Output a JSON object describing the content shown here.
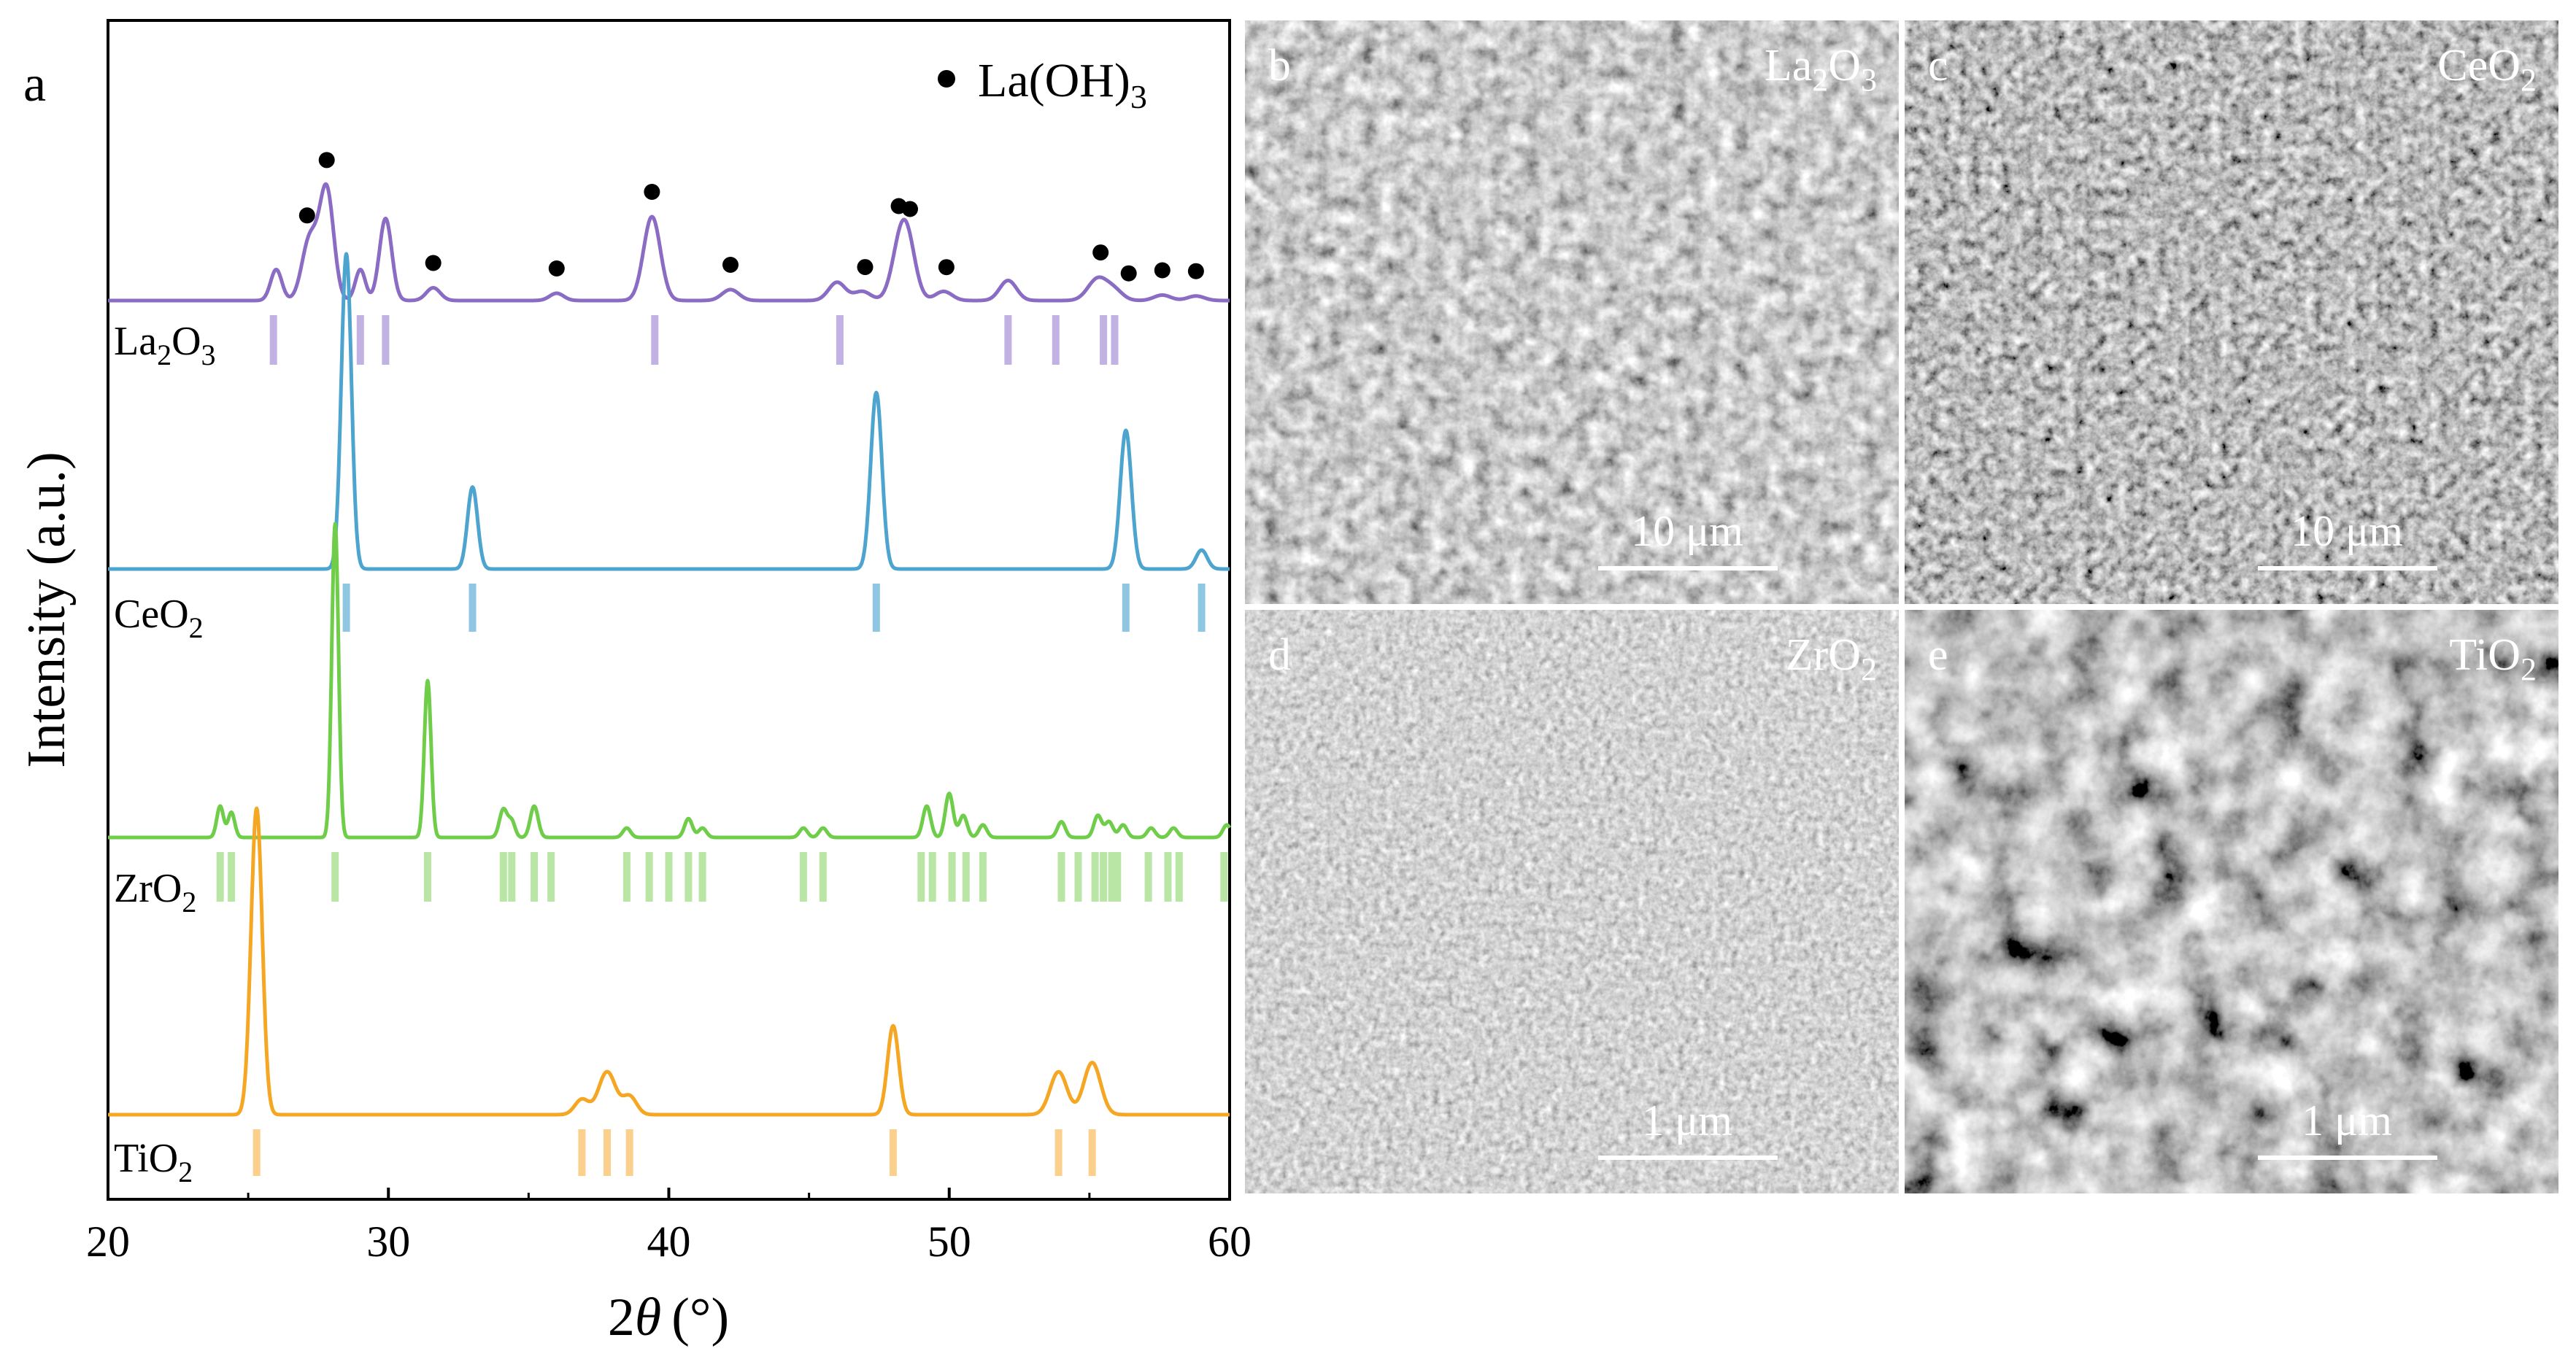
{
  "panel_label": "a",
  "chart_data": {
    "type": "line",
    "xlabel_prefix": "2",
    "xlabel_symbol": "θ",
    "xlabel_unit": "(°)",
    "ylabel": "Intensity (a.u.)",
    "xlim": [
      20,
      60
    ],
    "xticks": [
      20,
      30,
      40,
      50,
      60
    ],
    "legend": {
      "marker": "●",
      "label_main": "La(OH)",
      "label_sub": "3"
    },
    "series": [
      {
        "name": "La2O3",
        "label_main": "La",
        "label_sub1": "2",
        "label_mid": "O",
        "label_sub2": "3",
        "color": "#8a6cc4",
        "ref_color": "#c2b1e3",
        "amp": 1.0,
        "peaks": [
          [
            26.0,
            0.2,
            0.17
          ],
          [
            27.2,
            0.28,
            0.34
          ],
          [
            27.8,
            0.25,
            0.6
          ],
          [
            29.0,
            0.18,
            0.17
          ],
          [
            29.9,
            0.22,
            0.45
          ],
          [
            31.6,
            0.25,
            0.07
          ],
          [
            36.0,
            0.25,
            0.04
          ],
          [
            39.4,
            0.3,
            0.46
          ],
          [
            42.2,
            0.3,
            0.06
          ],
          [
            46.0,
            0.3,
            0.1
          ],
          [
            46.9,
            0.3,
            0.05
          ],
          [
            48.2,
            0.3,
            0.2
          ],
          [
            48.5,
            0.3,
            0.3
          ],
          [
            49.8,
            0.3,
            0.05
          ],
          [
            52.1,
            0.3,
            0.11
          ],
          [
            55.3,
            0.35,
            0.12
          ],
          [
            55.9,
            0.3,
            0.05
          ],
          [
            57.6,
            0.3,
            0.03
          ],
          [
            58.8,
            0.3,
            0.025
          ]
        ],
        "refs": [
          25.9,
          29.0,
          29.9,
          39.5,
          46.1,
          52.1,
          53.8,
          55.5,
          55.9
        ],
        "dots": [
          27.1,
          27.8,
          31.6,
          36.0,
          39.4,
          42.2,
          47.0,
          48.2,
          48.6,
          49.9,
          55.4,
          56.4,
          57.6,
          58.8
        ]
      },
      {
        "name": "CeO2",
        "label_main": "Ce",
        "label_sub1": "",
        "label_mid": "O",
        "label_sub2": "2",
        "color": "#4da4cf",
        "ref_color": "#8fc6e2",
        "amp": 1.0,
        "peaks": [
          [
            28.5,
            0.18,
            1.0
          ],
          [
            33.0,
            0.18,
            0.26
          ],
          [
            47.4,
            0.2,
            0.56
          ],
          [
            56.3,
            0.2,
            0.44
          ],
          [
            59.0,
            0.2,
            0.06
          ]
        ],
        "refs": [
          28.5,
          33.0,
          47.4,
          56.3,
          59.0
        ],
        "dots": []
      },
      {
        "name": "ZrO2",
        "label_main": "Zr",
        "label_sub1": "",
        "label_mid": "O",
        "label_sub2": "2",
        "color": "#6fcd4a",
        "ref_color": "#b9e6a5",
        "amp": 1.0,
        "peaks": [
          [
            24.0,
            0.12,
            0.1
          ],
          [
            24.4,
            0.12,
            0.08
          ],
          [
            28.1,
            0.12,
            1.0
          ],
          [
            31.4,
            0.12,
            0.5
          ],
          [
            34.1,
            0.14,
            0.09
          ],
          [
            34.4,
            0.12,
            0.05
          ],
          [
            35.2,
            0.14,
            0.1
          ],
          [
            38.5,
            0.14,
            0.03
          ],
          [
            40.7,
            0.14,
            0.06
          ],
          [
            41.2,
            0.14,
            0.03
          ],
          [
            44.8,
            0.14,
            0.03
          ],
          [
            45.5,
            0.14,
            0.03
          ],
          [
            49.2,
            0.14,
            0.1
          ],
          [
            50.0,
            0.14,
            0.14
          ],
          [
            50.5,
            0.14,
            0.07
          ],
          [
            51.2,
            0.14,
            0.04
          ],
          [
            54.0,
            0.14,
            0.05
          ],
          [
            55.3,
            0.14,
            0.07
          ],
          [
            55.7,
            0.14,
            0.05
          ],
          [
            56.2,
            0.14,
            0.04
          ],
          [
            57.2,
            0.14,
            0.03
          ],
          [
            58.0,
            0.14,
            0.03
          ],
          [
            59.9,
            0.14,
            0.04
          ]
        ],
        "refs": [
          24.0,
          24.4,
          28.1,
          31.4,
          34.1,
          34.4,
          35.2,
          35.8,
          38.5,
          39.3,
          40.0,
          40.7,
          41.2,
          44.8,
          45.5,
          49.0,
          49.4,
          50.1,
          50.6,
          51.2,
          54.0,
          54.6,
          55.2,
          55.5,
          55.8,
          56.0,
          57.1,
          57.8,
          58.2,
          59.8
        ],
        "dots": []
      },
      {
        "name": "TiO2",
        "label_main": "Ti",
        "label_sub1": "",
        "label_mid": "O",
        "label_sub2": "2",
        "color": "#f5a623",
        "ref_color": "#fbd08d",
        "amp": 1.0,
        "peaks": [
          [
            25.3,
            0.2,
            1.0
          ],
          [
            36.9,
            0.25,
            0.05
          ],
          [
            37.8,
            0.3,
            0.14
          ],
          [
            38.6,
            0.25,
            0.06
          ],
          [
            48.0,
            0.2,
            0.29
          ],
          [
            53.9,
            0.3,
            0.14
          ],
          [
            55.1,
            0.3,
            0.17
          ]
        ],
        "refs": [
          25.3,
          36.9,
          37.8,
          38.6,
          48.0,
          53.9,
          55.1
        ],
        "dots": []
      }
    ]
  },
  "sem_panels": [
    {
      "label": "b",
      "name_main": "La",
      "name_sub1": "2",
      "name_mid": "O",
      "name_sub2": "3",
      "scale": "10 μm"
    },
    {
      "label": "c",
      "name_main": "Ce",
      "name_sub1": "",
      "name_mid": "O",
      "name_sub2": "2",
      "scale": "10 μm"
    },
    {
      "label": "d",
      "name_main": "Zr",
      "name_sub1": "",
      "name_mid": "O",
      "name_sub2": "2",
      "scale": "1 μm"
    },
    {
      "label": "e",
      "name_main": "Ti",
      "name_sub1": "",
      "name_mid": "O",
      "name_sub2": "2",
      "scale": "1 μm"
    }
  ]
}
